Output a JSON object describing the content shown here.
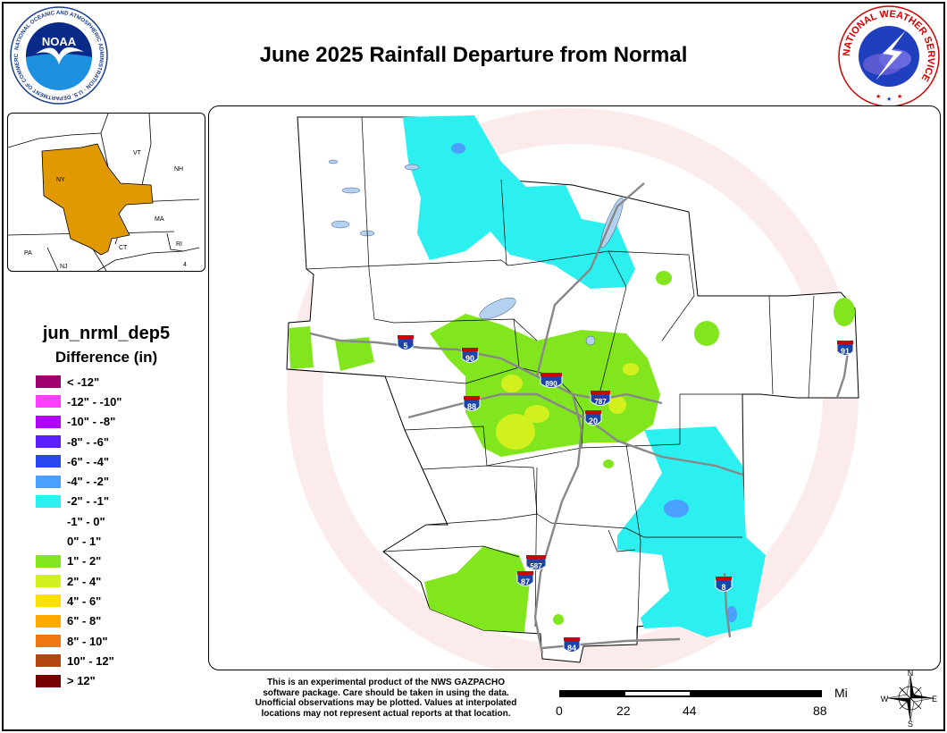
{
  "title": "June 2025 Rainfall Departure from Normal",
  "logos": {
    "noaa_center": "NOAA",
    "noaa_ring": "NATIONAL OCEANIC AND ATMOSPHERIC ADMINISTRATION · U.S. DEPARTMENT OF COMMERCE",
    "nws_ring": "NATIONAL WEATHER SERVICE"
  },
  "inset": {
    "states": [
      "VT",
      "NH",
      "NY",
      "MA",
      "CT",
      "RI",
      "PA",
      "NJ"
    ],
    "highlight_color": "#e09a00",
    "other_number": "4"
  },
  "legend": {
    "title": "jun_nrml_dep5",
    "subtitle": "Difference (in)",
    "items": [
      {
        "label": "< -12\"",
        "color": "#a0006e"
      },
      {
        "label": "-12\" - -10\"",
        "color": "#ff3cff"
      },
      {
        "label": "-10\" - -8\"",
        "color": "#b000ff"
      },
      {
        "label": "-8\" - -6\"",
        "color": "#5a1eff"
      },
      {
        "label": "-6\" - -4\"",
        "color": "#2846f0"
      },
      {
        "label": "-4\" - -2\"",
        "color": "#4aa0ff"
      },
      {
        "label": "-2\" - -1\"",
        "color": "#2cf0f0"
      },
      {
        "label": "-1\" - 0\"",
        "color": "#ffffff"
      },
      {
        "label": "0\" - 1\"",
        "color": "#ffffff"
      },
      {
        "label": "1\" - 2\"",
        "color": "#82e61e"
      },
      {
        "label": "2\" - 4\"",
        "color": "#d2f01e"
      },
      {
        "label": "4\" - 6\"",
        "color": "#ffe100"
      },
      {
        "label": "6\" - 8\"",
        "color": "#ffaa00"
      },
      {
        "label": "8\" - 10\"",
        "color": "#f07814"
      },
      {
        "label": "10\" - 12\"",
        "color": "#b44614"
      },
      {
        "label": "> 12\"",
        "color": "#780000"
      }
    ]
  },
  "map": {
    "interstates": [
      "5",
      "90",
      "88",
      "890",
      "787",
      "20",
      "91",
      "587",
      "87",
      "84",
      "8"
    ],
    "watermark": "U.S. DEPARTMENT OF COMMERCE · NATIONAL WEATHER SERVICE"
  },
  "disclaimer": [
    "This is an experimental product of the NWS GAZPACHO",
    "software package. Care should be taken in using the data.",
    "Unofficial observations may be plotted. Values at interpolated",
    "locations may not represent actual reports at that location."
  ],
  "scale": {
    "unit": "Miles",
    "ticks": [
      "0",
      "22",
      "44",
      "88"
    ]
  },
  "compass": {
    "n": "N",
    "s": "S",
    "e": "E",
    "w": "W"
  }
}
